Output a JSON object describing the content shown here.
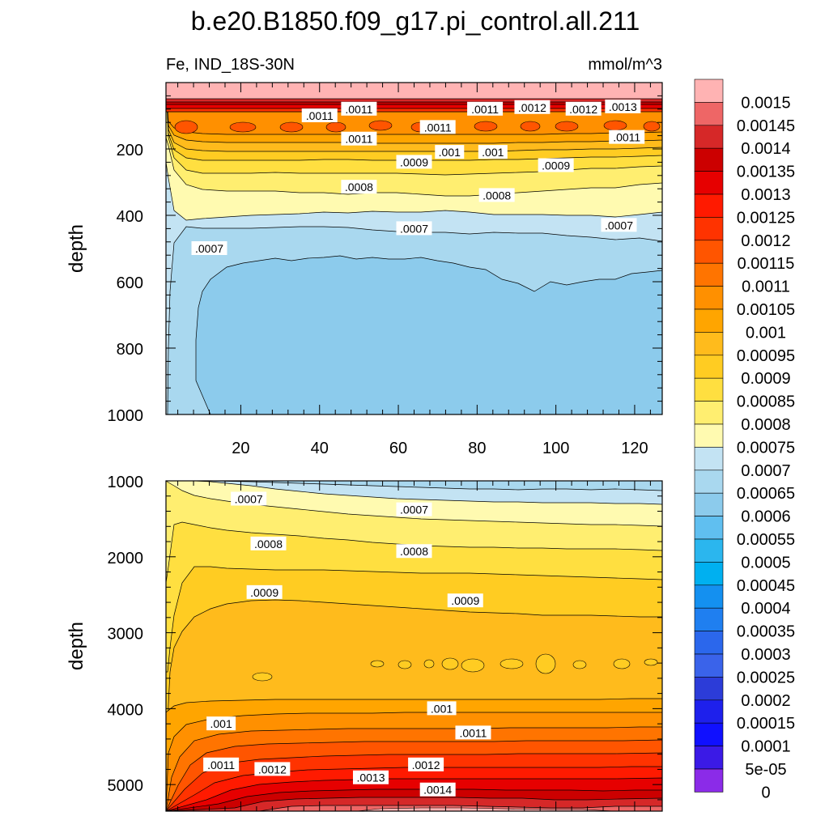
{
  "title": "b.e20.B1850.f09_g17.pi_control.all.211",
  "subtitle_left": "Fe, IND_18S-30N",
  "subtitle_right": "mmol/m^3",
  "chart_data": [
    {
      "type": "contour",
      "panel": "upper",
      "title": "b.e20.B1850.f09_g17.pi_control.all.211",
      "variable": "Fe, IND_18S-30N",
      "units": "mmol/m^3",
      "xlabel": "",
      "ylabel": "depth",
      "xlim": [
        1,
        127
      ],
      "ylim": [
        0,
        1000
      ],
      "y_inverted": true,
      "x_ticks": [
        20,
        40,
        60,
        80,
        100,
        120
      ],
      "y_ticks": [
        200,
        400,
        600,
        800,
        1000
      ],
      "contour_levels": [
        {
          "depth": 10,
          "value": 0.0015
        },
        {
          "depth": 55,
          "value": 0.0014
        },
        {
          "depth": 100,
          "value": 0.0012
        },
        {
          "depth": 140,
          "value": 0.00115
        },
        {
          "depth": 180,
          "value": 0.0011
        },
        {
          "depth": 230,
          "value": 0.001
        },
        {
          "depth": 280,
          "value": 0.0009
        },
        {
          "depth": 340,
          "value": 0.0008
        },
        {
          "depth": 410,
          "value": 0.00075
        },
        {
          "depth": 490,
          "value": 0.0007
        },
        {
          "depth": 600,
          "value": 0.00065
        },
        {
          "depth": 800,
          "value": 0.0006
        }
      ],
      "contour_labels": [
        {
          "x": 50,
          "depth": 80,
          "text": ".0011"
        },
        {
          "x": 40,
          "depth": 100,
          "text": ".0011"
        },
        {
          "x": 70,
          "depth": 135,
          "text": ".0011"
        },
        {
          "x": 50,
          "depth": 170,
          "text": ".0011"
        },
        {
          "x": 82,
          "depth": 80,
          "text": ".0011"
        },
        {
          "x": 94,
          "depth": 75,
          "text": ".0012"
        },
        {
          "x": 107,
          "depth": 80,
          "text": ".0012"
        },
        {
          "x": 117,
          "depth": 73,
          "text": ".0013"
        },
        {
          "x": 118,
          "depth": 165,
          "text": ".0011"
        },
        {
          "x": 73,
          "depth": 210,
          "text": ".001"
        },
        {
          "x": 84,
          "depth": 210,
          "text": ".001"
        },
        {
          "x": 64,
          "depth": 240,
          "text": ".0009"
        },
        {
          "x": 100,
          "depth": 250,
          "text": ".0009"
        },
        {
          "x": 50,
          "depth": 315,
          "text": ".0008"
        },
        {
          "x": 85,
          "depth": 340,
          "text": ".0008"
        },
        {
          "x": 64,
          "depth": 440,
          "text": ".0007"
        },
        {
          "x": 116,
          "depth": 430,
          "text": ".0007"
        },
        {
          "x": 12,
          "depth": 500,
          "text": ".0007"
        }
      ]
    },
    {
      "type": "contour",
      "panel": "lower",
      "xlabel": "",
      "ylabel": "depth",
      "xlim": [
        1,
        127
      ],
      "ylim": [
        1000,
        5350
      ],
      "y_inverted": true,
      "x_ticks": [
        20,
        40,
        60,
        80,
        100,
        120
      ],
      "y_ticks": [
        1000,
        2000,
        3000,
        4000,
        5000
      ],
      "contour_levels": [
        {
          "depth": 1150,
          "value": 0.0007
        },
        {
          "depth": 1450,
          "value": 0.00075
        },
        {
          "depth": 1800,
          "value": 0.0008
        },
        {
          "depth": 2200,
          "value": 0.00085
        },
        {
          "depth": 2600,
          "value": 0.0009
        },
        {
          "depth": 3300,
          "value": 0.00095
        },
        {
          "depth": 3950,
          "value": 0.001
        },
        {
          "depth": 4250,
          "value": 0.0011
        },
        {
          "depth": 4650,
          "value": 0.0012
        },
        {
          "depth": 4950,
          "value": 0.0013
        },
        {
          "depth": 5150,
          "value": 0.0014
        },
        {
          "depth": 5300,
          "value": 0.0015
        }
      ],
      "contour_labels": [
        {
          "x": 22,
          "depth": 1240,
          "text": ".0007"
        },
        {
          "x": 64,
          "depth": 1380,
          "text": ".0007"
        },
        {
          "x": 27,
          "depth": 1830,
          "text": ".0008"
        },
        {
          "x": 64,
          "depth": 1930,
          "text": ".0008"
        },
        {
          "x": 26,
          "depth": 2470,
          "text": ".0009"
        },
        {
          "x": 77,
          "depth": 2580,
          "text": ".0009"
        },
        {
          "x": 71,
          "depth": 4000,
          "text": ".001"
        },
        {
          "x": 15,
          "depth": 4200,
          "text": ".001"
        },
        {
          "x": 79,
          "depth": 4320,
          "text": ".0011"
        },
        {
          "x": 15,
          "depth": 4740,
          "text": ".0011"
        },
        {
          "x": 28,
          "depth": 4800,
          "text": ".0012"
        },
        {
          "x": 67,
          "depth": 4740,
          "text": ".0012"
        },
        {
          "x": 53,
          "depth": 4910,
          "text": ".0013"
        },
        {
          "x": 70,
          "depth": 5070,
          "text": ".0014"
        }
      ]
    }
  ],
  "colorbar": {
    "labels": [
      "0.0015",
      "0.00145",
      "0.0014",
      "0.00135",
      "0.0013",
      "0.00125",
      "0.0012",
      "0.00115",
      "0.0011",
      "0.00105",
      "0.001",
      "0.00095",
      "0.0009",
      "0.00085",
      "0.0008",
      "0.00075",
      "0.0007",
      "0.00065",
      "0.0006",
      "0.00055",
      "0.0005",
      "0.00045",
      "0.0004",
      "0.00035",
      "0.0003",
      "0.00025",
      "0.0002",
      "0.00015",
      "0.0001",
      "5e-05",
      "0"
    ],
    "colors": [
      "#ffb3b3",
      "#ee6666",
      "#d62828",
      "#cc0000",
      "#e60000",
      "#ff1a00",
      "#ff3300",
      "#ff5500",
      "#ff7400",
      "#ff9000",
      "#ffa500",
      "#ffbb1c",
      "#ffcc22",
      "#ffdf40",
      "#ffee70",
      "#fffab0",
      "#c3e3f3",
      "#a9d8ef",
      "#8ccbec",
      "#60bff0",
      "#2bb6ee",
      "#00b0f0",
      "#1490f0",
      "#1f7ff0",
      "#2b67ec",
      "#3a63ea",
      "#2c3cd8",
      "#1e20ec",
      "#1010ff",
      "#3b1ae6",
      "#8b2be8"
    ]
  }
}
